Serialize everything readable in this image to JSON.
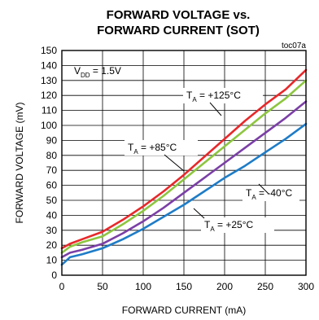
{
  "chart_data": {
    "type": "line",
    "title_line1": "FORWARD VOLTAGE vs.",
    "title_line2": "FORWARD CURRENT (SOT)",
    "figure_id": "toc07a",
    "xlabel": "FORWARD CURRENT (mA)",
    "ylabel": "FORWARD VOLTAGE (mV)",
    "xlim": [
      0,
      300
    ],
    "ylim": [
      0,
      150
    ],
    "xticks": [
      0,
      50,
      100,
      150,
      200,
      250,
      300
    ],
    "yticks": [
      0,
      10,
      20,
      30,
      40,
      50,
      60,
      70,
      80,
      90,
      100,
      110,
      120,
      130,
      140,
      150
    ],
    "grid": true,
    "condition": {
      "prefix": "V",
      "sub": "DD",
      "suffix": " = 1.5V"
    },
    "series": [
      {
        "label_prefix": "T",
        "label_sub": "A",
        "label_suffix": " = +125°C",
        "color": "#e8282a",
        "x": [
          0,
          10,
          25,
          50,
          75,
          100,
          125,
          150,
          175,
          200,
          225,
          250,
          275,
          300
        ],
        "y": [
          18,
          21,
          24,
          29,
          37,
          46,
          56,
          67,
          79,
          91,
          103,
          114,
          124,
          137
        ]
      },
      {
        "label_prefix": "T",
        "label_sub": "A",
        "label_suffix": " = +85°C",
        "color": "#8dc63f",
        "x": [
          0,
          10,
          25,
          50,
          75,
          100,
          125,
          150,
          175,
          200,
          225,
          250,
          275,
          300
        ],
        "y": [
          15,
          19,
          22,
          26,
          34,
          43,
          53,
          64,
          75,
          86,
          97,
          108,
          118,
          130
        ]
      },
      {
        "label_prefix": "T",
        "label_sub": "A",
        "label_suffix": " = +25°C",
        "color": "#7b3fa6",
        "x": [
          0,
          10,
          25,
          50,
          75,
          100,
          125,
          150,
          175,
          200,
          225,
          250,
          275,
          300
        ],
        "y": [
          12,
          15,
          17,
          21,
          28,
          36,
          45,
          55,
          65,
          75,
          85,
          95,
          105,
          116
        ]
      },
      {
        "label_prefix": "T",
        "label_sub": "A",
        "label_suffix": " = -40°C",
        "color": "#1e7cc7",
        "x": [
          0,
          10,
          25,
          50,
          75,
          100,
          125,
          150,
          175,
          200,
          225,
          250,
          275,
          300
        ],
        "y": [
          7,
          12,
          14,
          18,
          24,
          31,
          39,
          47,
          56,
          65,
          73,
          82,
          91,
          101
        ]
      }
    ]
  }
}
